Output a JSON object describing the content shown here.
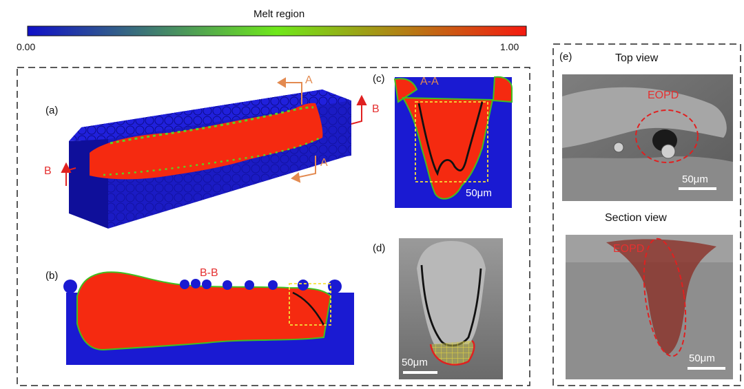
{
  "colorbar": {
    "title": "Melt region",
    "min_label": "0.00",
    "max_label": "1.00",
    "colors": [
      "#1010c8",
      "#6fe81a",
      "#f51a10"
    ]
  },
  "panels": {
    "a": {
      "tag": "(a)",
      "section_marks": [
        "A",
        "A",
        "B",
        "B"
      ]
    },
    "b": {
      "tag": "(b)",
      "title": "B-B"
    },
    "c": {
      "tag": "(c)",
      "title": "A-A",
      "scale": "50μm"
    },
    "d": {
      "tag": "(d)",
      "scale": "50μm"
    },
    "e": {
      "tag": "(e)",
      "top_title": "Top view",
      "section_title": "Section view",
      "top_label": "EOPD",
      "section_label": "EOPD",
      "top_scale": "50μm",
      "section_scale": "50μm"
    }
  },
  "colors": {
    "melt_blue": "#1a1ad2",
    "melt_red": "#f52a10",
    "green_edge": "#40c020",
    "orange_marker": "#e38a50",
    "red_marker": "#e02020",
    "yellow_box": "#f5e23a"
  }
}
